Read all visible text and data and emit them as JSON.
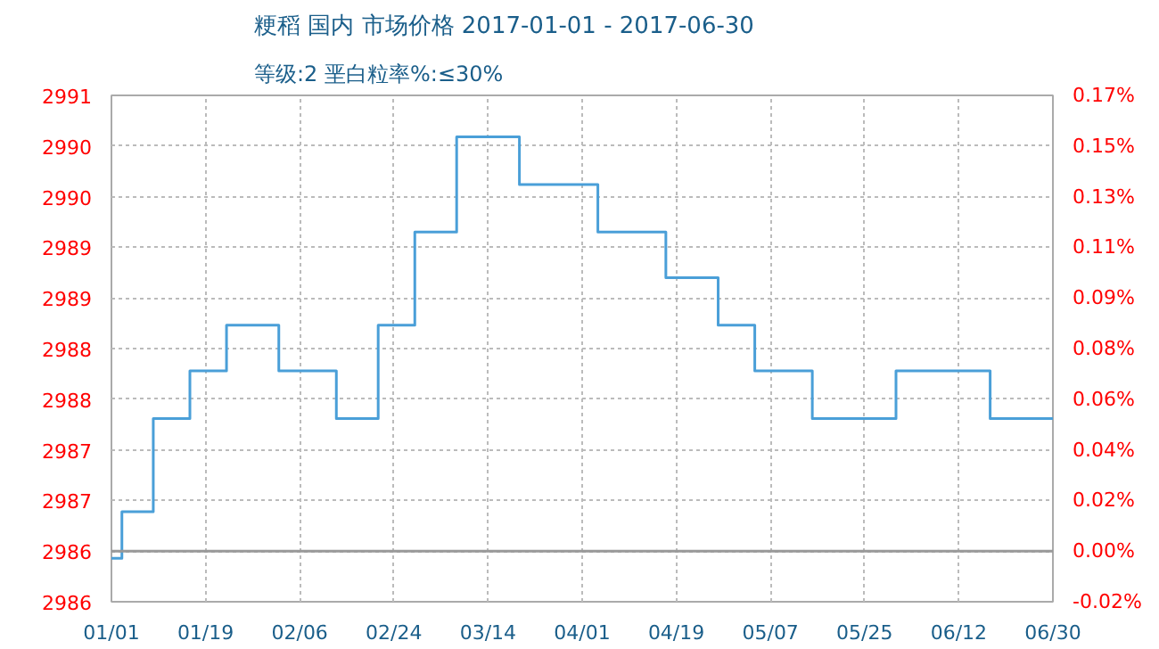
{
  "chart_data": {
    "type": "step",
    "title": "粳稻 国内 市场价格 2017-01-01 - 2017-06-30",
    "subtitle": "等级:2 垩白粒率%:≤30%",
    "x": [
      "2017-01-01",
      "2017-01-03",
      "2017-01-09",
      "2017-01-16",
      "2017-01-23",
      "2017-02-02",
      "2017-02-13",
      "2017-02-21",
      "2017-02-28",
      "2017-03-08",
      "2017-03-20",
      "2017-04-04",
      "2017-04-17",
      "2017-04-27",
      "2017-05-04",
      "2017-05-15",
      "2017-05-31",
      "2017-06-18",
      "2017-06-30"
    ],
    "series": [
      {
        "color": "#4a9fd8",
        "values": [
          2985.93,
          2986.39,
          2987.31,
          2987.78,
          2988.23,
          2987.78,
          2987.31,
          2988.23,
          2989.15,
          2990.09,
          2989.62,
          2989.15,
          2988.7,
          2988.23,
          2987.78,
          2987.31,
          2987.78,
          2987.31,
          2987.31
        ]
      }
    ],
    "xlim": [
      "2017-01-01",
      "2017-06-30"
    ],
    "xticks": [
      {
        "value": "2017-01-01",
        "label": "01/01"
      },
      {
        "value": "2017-01-19",
        "label": "01/19"
      },
      {
        "value": "2017-02-06",
        "label": "02/06"
      },
      {
        "value": "2017-02-24",
        "label": "02/24"
      },
      {
        "value": "2017-03-14",
        "label": "03/14"
      },
      {
        "value": "2017-04-01",
        "label": "04/01"
      },
      {
        "value": "2017-04-19",
        "label": "04/19"
      },
      {
        "value": "2017-05-07",
        "label": "05/07"
      },
      {
        "value": "2017-05-25",
        "label": "05/25"
      },
      {
        "value": "2017-06-12",
        "label": "06/12"
      },
      {
        "value": "2017-06-30",
        "label": "06/30"
      }
    ],
    "ylim": [
      2985.5,
      2990.5
    ],
    "yticks": [
      {
        "value": 2985.5,
        "label": "2986"
      },
      {
        "value": 2986.0,
        "label": "2986"
      },
      {
        "value": 2986.5,
        "label": "2987"
      },
      {
        "value": 2987.0,
        "label": "2987"
      },
      {
        "value": 2987.5,
        "label": "2988"
      },
      {
        "value": 2988.0,
        "label": "2988"
      },
      {
        "value": 2988.5,
        "label": "2989"
      },
      {
        "value": 2989.0,
        "label": "2989"
      },
      {
        "value": 2989.5,
        "label": "2990"
      },
      {
        "value": 2990.0,
        "label": "2990"
      },
      {
        "value": 2990.5,
        "label": "2991"
      }
    ],
    "y2lim": [
      -0.0189,
      0.1701
    ],
    "y2ticks": [
      {
        "value": -0.0189,
        "label": "-0.02%"
      },
      {
        "value": 0,
        "label": "0.00%"
      },
      {
        "value": 0.0189,
        "label": "0.02%"
      },
      {
        "value": 0.0378,
        "label": "0.04%"
      },
      {
        "value": 0.0567,
        "label": "0.06%"
      },
      {
        "value": 0.0756,
        "label": "0.08%"
      },
      {
        "value": 0.0945,
        "label": "0.09%"
      },
      {
        "value": 0.1134,
        "label": "0.11%"
      },
      {
        "value": 0.1323,
        "label": "0.13%"
      },
      {
        "value": 0.1512,
        "label": "0.15%"
      },
      {
        "value": 0.1701,
        "label": "0.17%"
      }
    ],
    "ref_lines": [
      {
        "axis": "y2",
        "value": 0,
        "color": "#999999"
      }
    ],
    "grid": true,
    "line_style": "solid"
  }
}
